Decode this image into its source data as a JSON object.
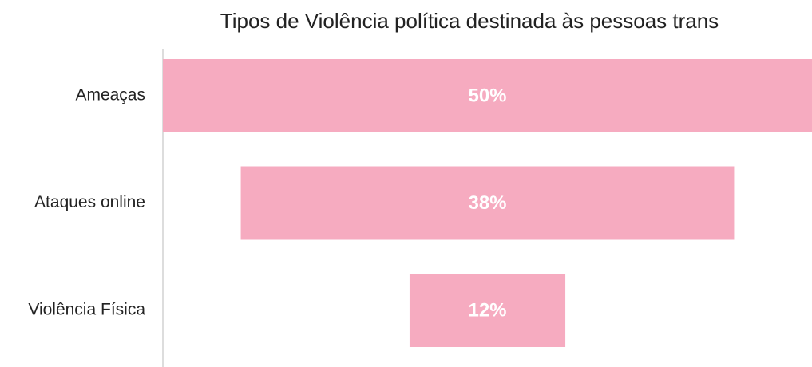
{
  "chart_data": {
    "type": "funnel",
    "title": "Tipos de Violência política destinada às pessoas trans",
    "categories": [
      "Ameaças",
      "Ataques online",
      "Violência Física"
    ],
    "values": [
      50,
      38,
      12
    ],
    "value_labels": [
      "50%",
      "38%",
      "12%"
    ],
    "color": "#f6abc0"
  }
}
